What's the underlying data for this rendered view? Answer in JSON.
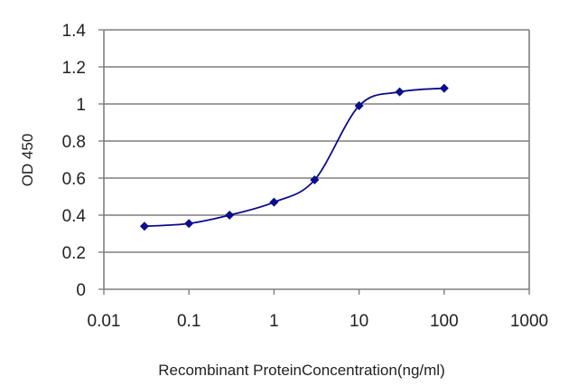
{
  "chart_data": {
    "type": "line",
    "title": "",
    "xlabel": "Recombinant ProteinConcentration(ng/ml)",
    "ylabel": "OD 450",
    "x_scale": "log",
    "xlim": [
      0.01,
      1000
    ],
    "ylim": [
      0,
      1.4
    ],
    "x_ticks": [
      "0.01",
      "0.1",
      "1",
      "10",
      "100",
      "1000"
    ],
    "y_ticks": [
      "0",
      "0.2",
      "0.4",
      "0.6",
      "0.8",
      "1",
      "1.2",
      "1.4"
    ],
    "grid": "horizontal",
    "legend": "none",
    "series": [
      {
        "x": [
          0.03,
          0.1,
          0.3,
          1,
          3,
          10,
          30,
          100
        ],
        "y": [
          0.34,
          0.355,
          0.4,
          0.47,
          0.59,
          0.99,
          1.065,
          1.085
        ]
      }
    ],
    "colors": {
      "series": "#0c0c8c",
      "grid": "#7f7f7f",
      "axis": "#7f7f7f"
    }
  }
}
